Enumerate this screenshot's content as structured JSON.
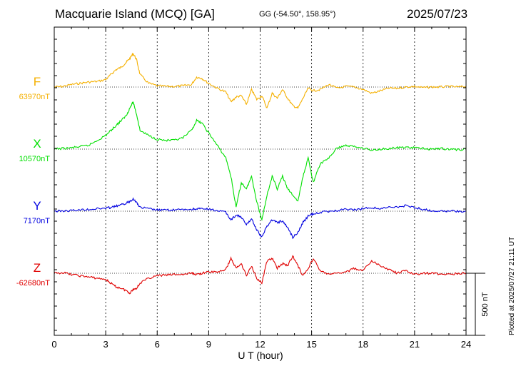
{
  "header": {
    "title": "Macquarie Island (MCQ)  [GA]",
    "coords": "GG (-54.50°, 158.95°)",
    "date": "2025/07/23"
  },
  "footer": {
    "plotted": "Plotted at 2025/07/27 21:11 UT"
  },
  "colors": {
    "F": "#f5b000",
    "X": "#00e000",
    "Y": "#0000e0",
    "Z": "#e00000"
  },
  "chart_data": {
    "type": "line",
    "xlabel": "U T (hour)",
    "xlim": [
      0,
      24
    ],
    "xticks": [
      0,
      3,
      6,
      9,
      12,
      15,
      18,
      21,
      24
    ],
    "scale_bar_label": "500 nT",
    "scale_bar_nT": 500,
    "y_range_per_band_nT": 1100,
    "series": [
      {
        "name": "F",
        "baseline_label": "63970nT",
        "baseline_nT": 63970,
        "color": "#f5b000",
        "x": [
          0,
          0.5,
          1,
          1.5,
          2,
          2.5,
          3,
          3.3,
          3.6,
          3.9,
          4.2,
          4.4,
          4.6,
          4.8,
          5.0,
          5.5,
          6,
          6.5,
          7,
          7.5,
          8,
          8.3,
          8.6,
          9,
          9.5,
          10,
          10.3,
          10.6,
          10.9,
          11.2,
          11.5,
          11.8,
          12.1,
          12.4,
          12.7,
          13.0,
          13.3,
          13.6,
          13.9,
          14.2,
          14.5,
          14.8,
          15.1,
          15.5,
          16,
          16.5,
          17,
          17.5,
          18,
          18.5,
          19,
          19.5,
          20,
          20.5,
          21,
          21.5,
          22,
          22.5,
          23,
          23.5,
          24
        ],
        "y": [
          63970,
          63975,
          63990,
          64000,
          64010,
          64015,
          64030,
          64070,
          64110,
          64130,
          64170,
          64200,
          64240,
          64190,
          64070,
          64000,
          63980,
          63975,
          63975,
          63980,
          63990,
          64050,
          64040,
          64000,
          63960,
          63930,
          63850,
          63890,
          63900,
          63830,
          63950,
          63870,
          63900,
          63800,
          63920,
          63880,
          63950,
          63880,
          63820,
          63800,
          63880,
          63960,
          63940,
          63950,
          63990,
          63960,
          63975,
          63970,
          63950,
          63920,
          63940,
          63960,
          63960,
          63970,
          63975,
          63965,
          63970,
          63970,
          63975,
          63970,
          63975
        ]
      },
      {
        "name": "X",
        "baseline_label": "10570nT",
        "baseline_nT": 10570,
        "color": "#00e000",
        "x": [
          0,
          0.5,
          1,
          1.5,
          2,
          2.5,
          3,
          3.3,
          3.6,
          3.9,
          4.2,
          4.4,
          4.6,
          4.8,
          5.0,
          5.5,
          6,
          6.5,
          7,
          7.5,
          8,
          8.3,
          8.6,
          9,
          9.5,
          10,
          10.3,
          10.6,
          10.9,
          11.2,
          11.5,
          11.8,
          12.1,
          12.4,
          12.7,
          13.0,
          13.3,
          13.6,
          13.9,
          14.2,
          14.5,
          14.8,
          15.1,
          15.5,
          16,
          16.5,
          17,
          17.5,
          18,
          18.5,
          19,
          19.5,
          20,
          20.5,
          21,
          21.5,
          22,
          22.5,
          23,
          23.5,
          24
        ],
        "y": [
          10570,
          10575,
          10580,
          10590,
          10600,
          10640,
          10680,
          10720,
          10760,
          10800,
          10840,
          10900,
          10950,
          10850,
          10720,
          10680,
          10650,
          10640,
          10640,
          10660,
          10720,
          10800,
          10780,
          10700,
          10600,
          10500,
          10350,
          10100,
          10300,
          10250,
          10350,
          10150,
          10000,
          10200,
          10350,
          10250,
          10350,
          10250,
          10200,
          10150,
          10350,
          10500,
          10300,
          10450,
          10500,
          10580,
          10600,
          10590,
          10580,
          10560,
          10570,
          10575,
          10580,
          10585,
          10580,
          10575,
          10570,
          10575,
          10570,
          10565,
          10570
        ]
      },
      {
        "name": "Y",
        "baseline_label": "7170nT",
        "baseline_nT": 7170,
        "color": "#0000e0",
        "x": [
          0,
          0.5,
          1,
          1.5,
          2,
          2.5,
          3,
          3.3,
          3.6,
          3.9,
          4.2,
          4.4,
          4.6,
          4.8,
          5.0,
          5.5,
          6,
          6.5,
          7,
          7.5,
          8,
          8.3,
          8.6,
          9,
          9.5,
          10,
          10.3,
          10.6,
          10.9,
          11.2,
          11.5,
          11.8,
          12.1,
          12.4,
          12.7,
          13.0,
          13.3,
          13.6,
          13.9,
          14.2,
          14.5,
          14.8,
          15.1,
          15.5,
          16,
          16.5,
          17,
          17.5,
          18,
          18.5,
          19,
          19.5,
          20,
          20.5,
          21,
          21.5,
          22,
          22.5,
          23,
          23.5,
          24
        ],
        "y": [
          7170,
          7172,
          7175,
          7180,
          7185,
          7190,
          7195,
          7200,
          7210,
          7220,
          7235,
          7250,
          7270,
          7240,
          7200,
          7190,
          7180,
          7178,
          7180,
          7182,
          7185,
          7190,
          7188,
          7185,
          7175,
          7160,
          7100,
          7140,
          7120,
          7060,
          7110,
          7020,
          6960,
          7050,
          7100,
          7080,
          7090,
          7040,
          6960,
          7000,
          7080,
          7130,
          7150,
          7160,
          7170,
          7175,
          7185,
          7180,
          7190,
          7200,
          7190,
          7200,
          7205,
          7215,
          7200,
          7185,
          7175,
          7172,
          7170,
          7168,
          7170
        ]
      },
      {
        "name": "Z",
        "baseline_label": "-62680nT",
        "baseline_nT": -62680,
        "color": "#e00000",
        "x": [
          0,
          0.5,
          1,
          1.5,
          2,
          2.5,
          3,
          3.3,
          3.6,
          3.9,
          4.2,
          4.4,
          4.6,
          4.8,
          5.0,
          5.5,
          6,
          6.5,
          7,
          7.5,
          8,
          8.3,
          8.6,
          9,
          9.5,
          10,
          10.3,
          10.6,
          10.9,
          11.2,
          11.5,
          11.8,
          12.1,
          12.4,
          12.7,
          13.0,
          13.3,
          13.6,
          13.9,
          14.2,
          14.5,
          14.8,
          15.1,
          15.5,
          16,
          16.5,
          17,
          17.5,
          18,
          18.5,
          19,
          19.5,
          20,
          20.5,
          21,
          21.5,
          22,
          22.5,
          23,
          23.5,
          24
        ],
        "y": [
          -62680,
          -62675,
          -62690,
          -62700,
          -62710,
          -62720,
          -62730,
          -62760,
          -62790,
          -62800,
          -62820,
          -62840,
          -62810,
          -62800,
          -62760,
          -62720,
          -62700,
          -62695,
          -62690,
          -62690,
          -62680,
          -62690,
          -62680,
          -62670,
          -62670,
          -62650,
          -62560,
          -62640,
          -62600,
          -62700,
          -62620,
          -62720,
          -62760,
          -62580,
          -62560,
          -62640,
          -62600,
          -62620,
          -62540,
          -62620,
          -62700,
          -62640,
          -62560,
          -62660,
          -62690,
          -62680,
          -62670,
          -62640,
          -62660,
          -62580,
          -62620,
          -62650,
          -62680,
          -62660,
          -62690,
          -62680,
          -62680,
          -62685,
          -62690,
          -62680,
          -62680
        ]
      }
    ]
  }
}
